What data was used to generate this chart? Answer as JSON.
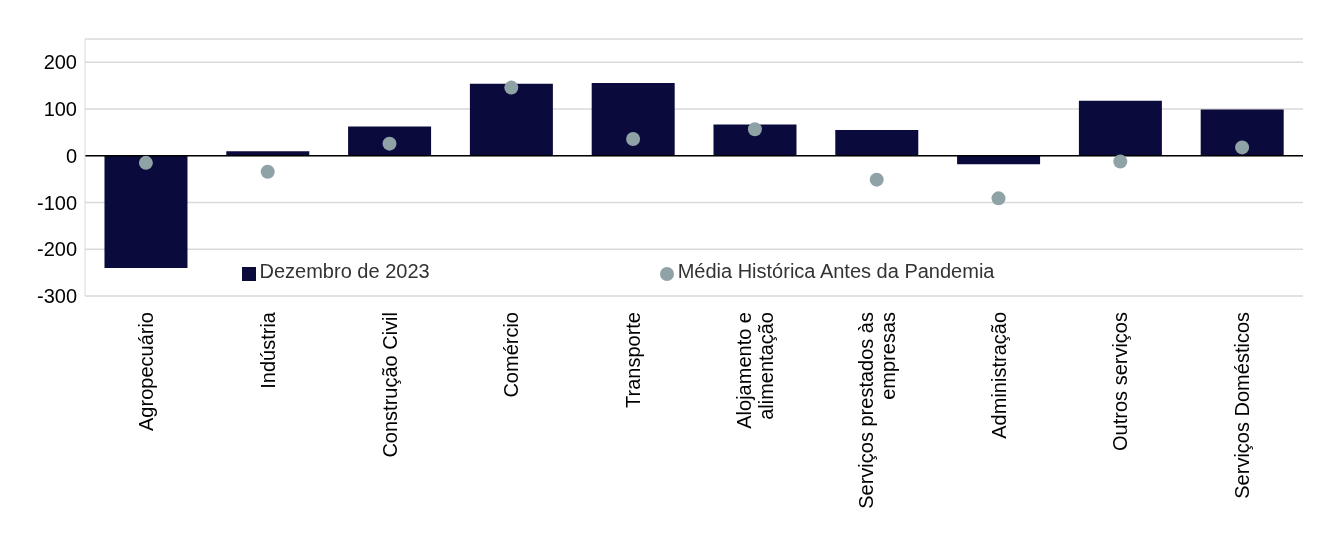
{
  "chart_data": {
    "type": "bar",
    "categories": [
      "Agropecuário",
      "Indústria",
      "Construção Civil",
      "Comércio",
      "Transporte",
      "Alojamento e alimentação",
      "Serviços prestados às empresas",
      "Administração",
      "Outros serviços",
      "Serviços Domésticos"
    ],
    "series": [
      {
        "name": "Dezembro de 2023",
        "color": "#0a0a3c",
        "values": [
          -240,
          10,
          63,
          154,
          156,
          67,
          55,
          -18,
          118,
          99
        ]
      },
      {
        "name": "Média Histórica Antes da Pandemia",
        "type": "scatter",
        "color": "#8fa3a6",
        "values": [
          -15,
          -34,
          26,
          146,
          36,
          57,
          -51,
          -91,
          -12,
          18
        ]
      }
    ],
    "ylim": [
      -300,
      250
    ],
    "yticks": [
      -300,
      -200,
      -100,
      0,
      100,
      200
    ],
    "grid": "y",
    "legend": "bottom",
    "marker": "circle"
  }
}
